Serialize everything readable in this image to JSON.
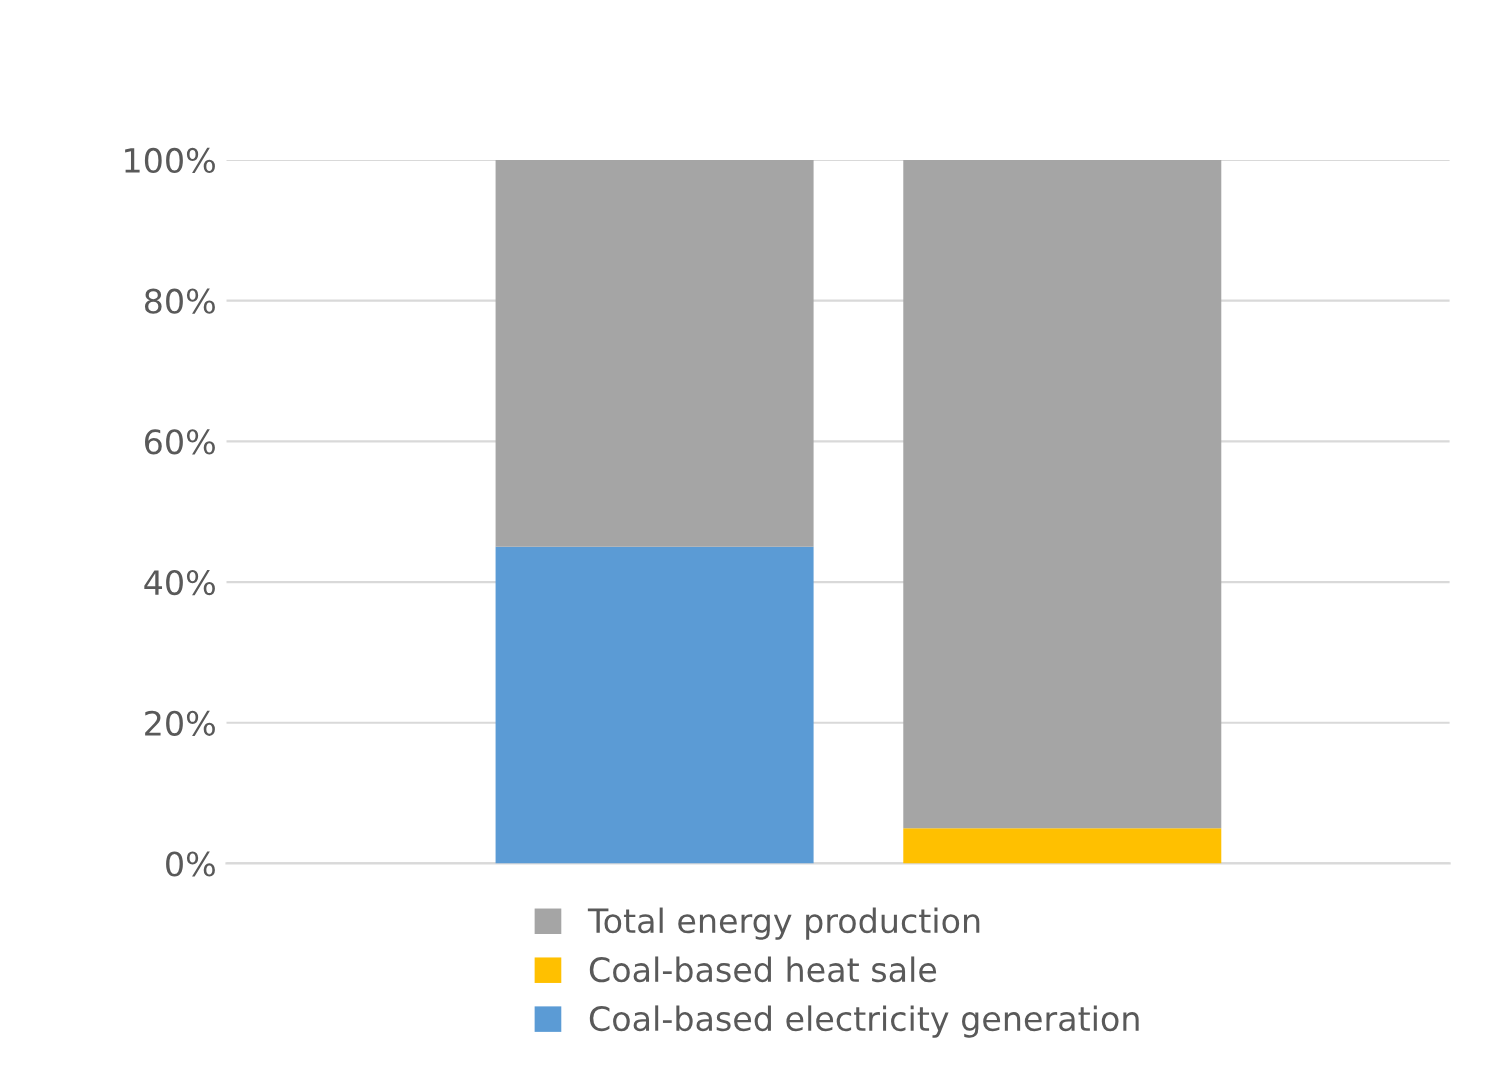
{
  "chart_data": {
    "type": "bar",
    "stacked": true,
    "categories": [
      null,
      null
    ],
    "series": [
      {
        "name": "Coal-based electricity generation",
        "color": "#5b9bd5",
        "values": [
          45,
          null
        ]
      },
      {
        "name": "Coal-based heat sale",
        "color": "#ffc000",
        "values": [
          null,
          5
        ]
      },
      {
        "name": "Total energy production",
        "color": "#a5a5a5",
        "values": [
          55,
          95
        ]
      }
    ],
    "ylim": [
      0,
      100
    ],
    "yticks": [
      {
        "value": 0,
        "label": "0%"
      },
      {
        "value": 20,
        "label": "20%"
      },
      {
        "value": 40,
        "label": "40%"
      },
      {
        "value": 60,
        "label": "60%"
      },
      {
        "value": 80,
        "label": "80%"
      },
      {
        "value": 100,
        "label": "100%"
      }
    ],
    "grid": "y",
    "legend": "bottom"
  }
}
